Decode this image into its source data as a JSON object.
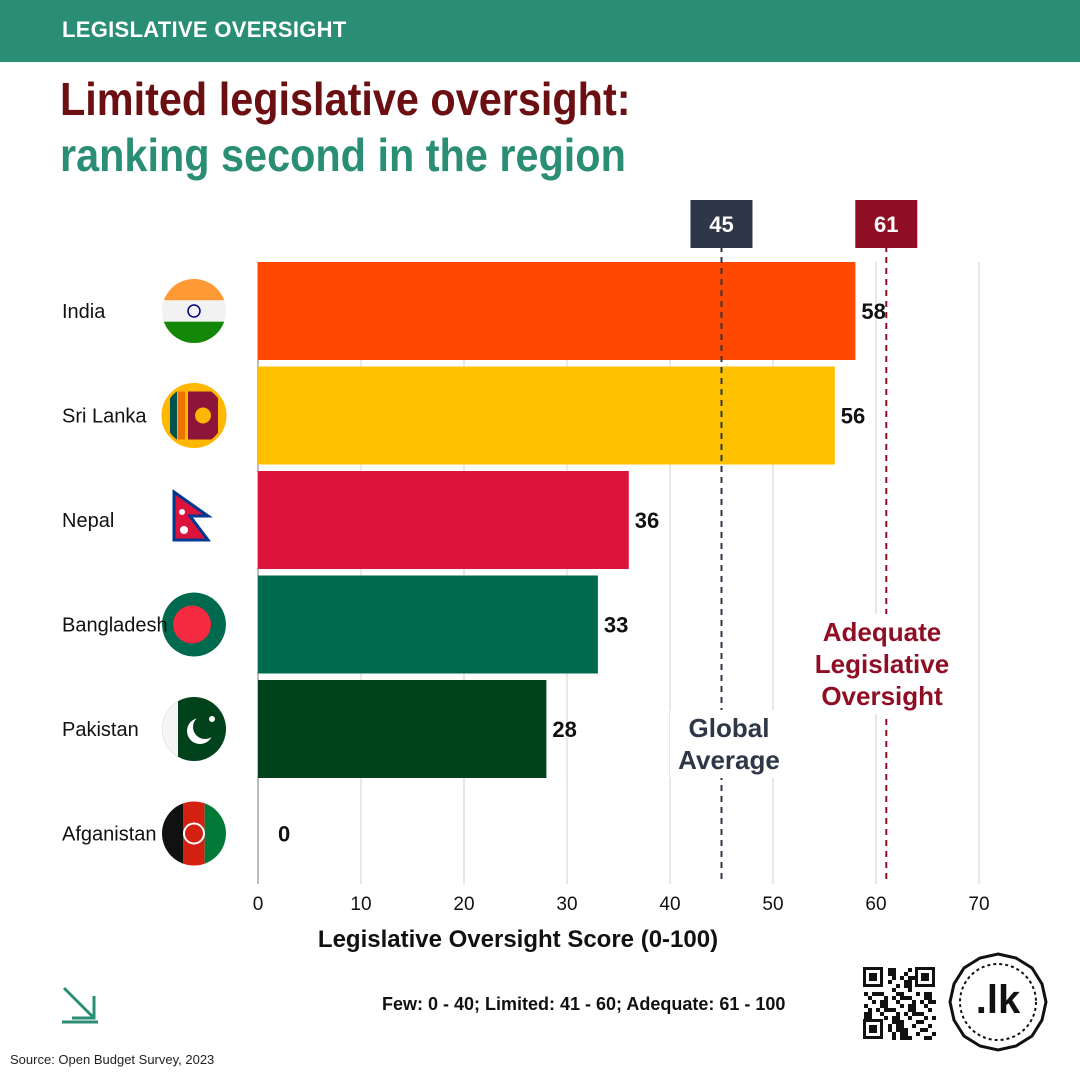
{
  "header": {
    "category": "LEGISLATIVE OVERSIGHT",
    "title_line1": "Limited legislative oversight:",
    "title_line2": "ranking second in the region"
  },
  "chart_data": {
    "type": "bar",
    "orientation": "horizontal",
    "categories": [
      "India",
      "Sri Lanka",
      "Nepal",
      "Bangladesh",
      "Pakistan",
      "Afganistan"
    ],
    "values": [
      58,
      56,
      36,
      33,
      28,
      0
    ],
    "bar_colors": [
      "#ff4800",
      "#ffc000",
      "#dc143c",
      "#006a4e",
      "#01411c",
      "#111111"
    ],
    "xlim": [
      0,
      70
    ],
    "xticks": [
      0,
      10,
      20,
      30,
      40,
      50,
      60,
      70
    ],
    "xlabel": "Legislative Oversight Score (0-100)",
    "grid": true,
    "reference_lines": [
      {
        "value": 45,
        "badge": "45",
        "label": "Global Average",
        "color": "#2d3748",
        "style": "dashed"
      },
      {
        "value": 61,
        "badge": "61",
        "label": "Adequate Legislative Oversight",
        "color": "#8f0e24",
        "style": "dashed"
      }
    ],
    "note": "Few: 0 - 40; Limited: 41 - 60; Adequate: 61 - 100"
  },
  "notes": {
    "global_line1": "Global",
    "global_line2": "Average",
    "adequate_line1": "Adequate",
    "adequate_line2": "Legislative",
    "adequate_line3": "Oversight"
  },
  "flags": [
    "india-flag",
    "sri-lanka-flag",
    "nepal-flag",
    "bangladesh-flag",
    "pakistan-flag",
    "afghanistan-flag"
  ],
  "footer": {
    "source": "Source: Open Budget Survey, 2023",
    "logo_text": ".lk"
  },
  "icons": {
    "corner": "arrow-down-right-icon",
    "qr": "qr-code-icon",
    "logo": "lk-logo-icon"
  }
}
